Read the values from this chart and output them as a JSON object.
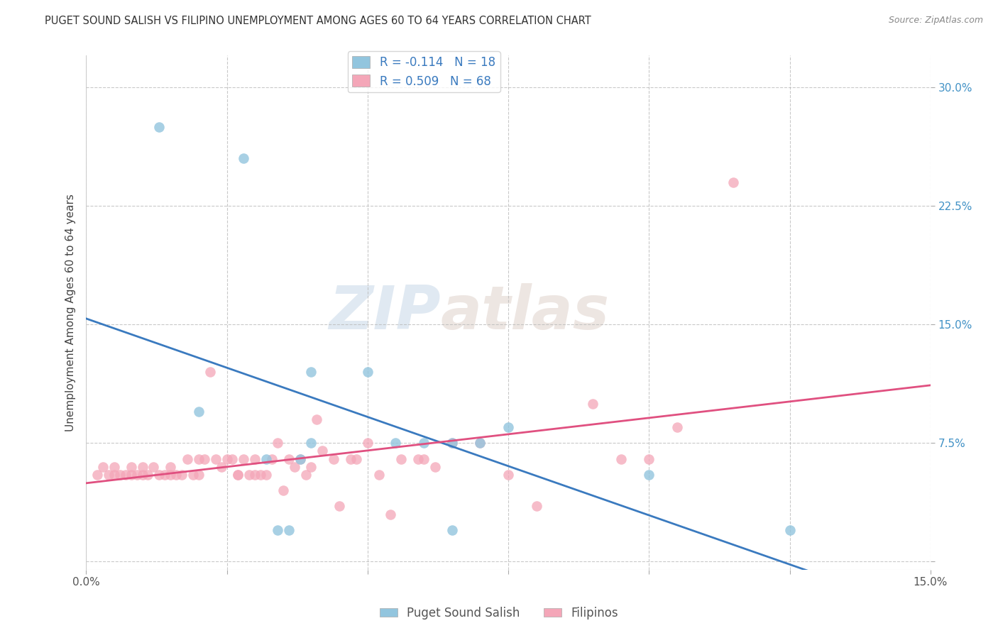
{
  "title": "PUGET SOUND SALISH VS FILIPINO UNEMPLOYMENT AMONG AGES 60 TO 64 YEARS CORRELATION CHART",
  "source": "Source: ZipAtlas.com",
  "ylabel": "Unemployment Among Ages 60 to 64 years",
  "xlim": [
    0.0,
    0.15
  ],
  "ylim": [
    -0.005,
    0.32
  ],
  "color_blue": "#92c5de",
  "color_pink": "#f4a6b8",
  "color_blue_line": "#3a7abf",
  "color_pink_line": "#e05080",
  "salish_x": [
    0.013,
    0.02,
    0.028,
    0.032,
    0.034,
    0.036,
    0.038,
    0.04,
    0.04,
    0.05,
    0.055,
    0.06,
    0.065,
    0.065,
    0.07,
    0.075,
    0.1,
    0.125
  ],
  "salish_y": [
    0.275,
    0.095,
    0.255,
    0.065,
    0.02,
    0.02,
    0.065,
    0.12,
    0.075,
    0.12,
    0.075,
    0.075,
    0.075,
    0.02,
    0.075,
    0.085,
    0.055,
    0.02
  ],
  "filipino_x": [
    0.002,
    0.003,
    0.004,
    0.005,
    0.005,
    0.006,
    0.007,
    0.008,
    0.008,
    0.009,
    0.01,
    0.01,
    0.011,
    0.012,
    0.013,
    0.014,
    0.015,
    0.015,
    0.016,
    0.017,
    0.018,
    0.019,
    0.02,
    0.02,
    0.021,
    0.022,
    0.023,
    0.024,
    0.025,
    0.026,
    0.027,
    0.027,
    0.028,
    0.029,
    0.03,
    0.03,
    0.031,
    0.032,
    0.033,
    0.034,
    0.035,
    0.036,
    0.037,
    0.038,
    0.039,
    0.04,
    0.041,
    0.042,
    0.044,
    0.045,
    0.047,
    0.048,
    0.05,
    0.052,
    0.054,
    0.056,
    0.059,
    0.06,
    0.062,
    0.065,
    0.07,
    0.075,
    0.08,
    0.09,
    0.095,
    0.1,
    0.105,
    0.115
  ],
  "filipino_y": [
    0.055,
    0.06,
    0.055,
    0.055,
    0.06,
    0.055,
    0.055,
    0.055,
    0.06,
    0.055,
    0.055,
    0.06,
    0.055,
    0.06,
    0.055,
    0.055,
    0.06,
    0.055,
    0.055,
    0.055,
    0.065,
    0.055,
    0.065,
    0.055,
    0.065,
    0.12,
    0.065,
    0.06,
    0.065,
    0.065,
    0.055,
    0.055,
    0.065,
    0.055,
    0.065,
    0.055,
    0.055,
    0.055,
    0.065,
    0.075,
    0.045,
    0.065,
    0.06,
    0.065,
    0.055,
    0.06,
    0.09,
    0.07,
    0.065,
    0.035,
    0.065,
    0.065,
    0.075,
    0.055,
    0.03,
    0.065,
    0.065,
    0.065,
    0.06,
    0.075,
    0.075,
    0.055,
    0.035,
    0.1,
    0.065,
    0.065,
    0.085,
    0.24
  ],
  "background_color": "#ffffff",
  "grid_color": "#bbbbbb",
  "ytick_values": [
    0.0,
    0.075,
    0.15,
    0.225,
    0.3
  ],
  "ytick_labels": [
    "",
    "7.5%",
    "15.0%",
    "22.5%",
    "30.0%"
  ],
  "xtick_values": [
    0.0,
    0.025,
    0.05,
    0.075,
    0.1,
    0.125,
    0.15
  ],
  "xtick_labels": [
    "0.0%",
    "",
    "",
    "",
    "",
    "",
    "15.0%"
  ],
  "legend_label1": "R = -0.114   N = 18",
  "legend_label2": "R = 0.509   N = 68",
  "bottom_legend_label1": "Puget Sound Salish",
  "bottom_legend_label2": "Filipinos",
  "watermark_zip": "ZIP",
  "watermark_atlas": "atlas"
}
